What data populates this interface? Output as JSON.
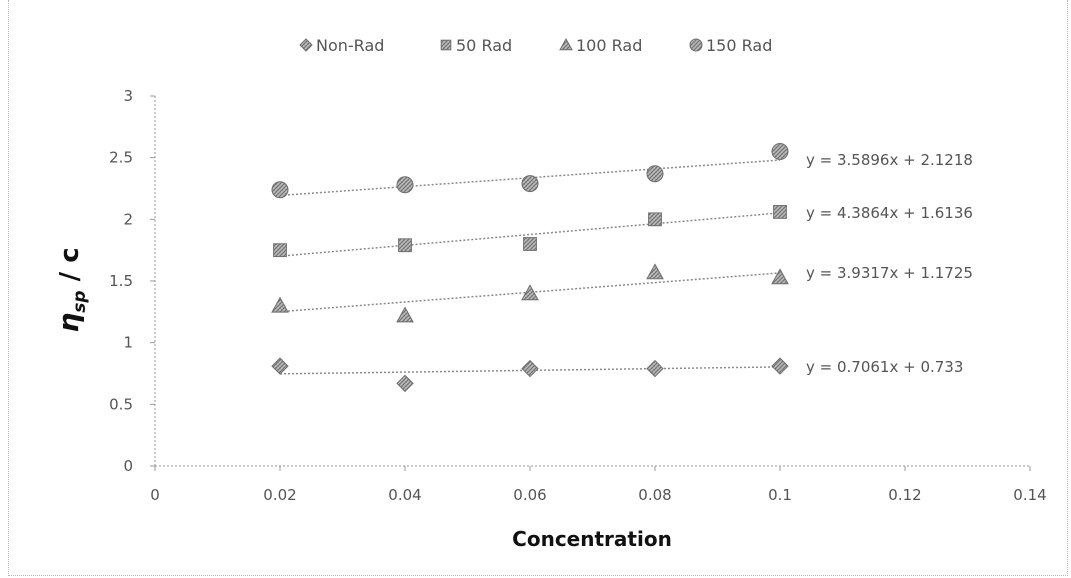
{
  "chart_data": {
    "type": "scatter",
    "title": "",
    "xlabel": "Concentration",
    "ylabel": {
      "symbol": "η",
      "subscript": "sp",
      "suffix": " / c"
    },
    "xlim": [
      0,
      0.14
    ],
    "ylim": [
      0,
      3
    ],
    "x_ticks": [
      "0",
      "0.02",
      "0.04",
      "0.06",
      "0.08",
      "0.1",
      "0.12",
      "0.14"
    ],
    "y_ticks": [
      "0",
      "0.5",
      "1",
      "1.5",
      "2",
      "2.5",
      "3"
    ],
    "grid": false,
    "legend_position": "top",
    "series": [
      {
        "name": "Non-Rad",
        "marker": "diamond",
        "x": [
          0.02,
          0.04,
          0.06,
          0.08,
          0.1
        ],
        "y": [
          0.81,
          0.67,
          0.79,
          0.79,
          0.81
        ],
        "trendline": {
          "slope": 0.7061,
          "intercept": 0.733,
          "equation": "y = 0.7061x + 0.733"
        }
      },
      {
        "name": "50 Rad",
        "marker": "square",
        "x": [
          0.02,
          0.04,
          0.06,
          0.08,
          0.1
        ],
        "y": [
          1.75,
          1.79,
          1.8,
          2.0,
          2.06
        ],
        "trendline": {
          "slope": 4.3864,
          "intercept": 1.6136,
          "equation": "y = 4.3864x + 1.6136"
        }
      },
      {
        "name": "100 Rad",
        "marker": "triangle",
        "x": [
          0.02,
          0.04,
          0.06,
          0.08,
          0.1
        ],
        "y": [
          1.3,
          1.22,
          1.4,
          1.57,
          1.53
        ],
        "trendline": {
          "slope": 3.9317,
          "intercept": 1.1725,
          "equation": "y = 3.9317x + 1.1725"
        }
      },
      {
        "name": "150 Rad",
        "marker": "circle",
        "x": [
          0.02,
          0.04,
          0.06,
          0.08,
          0.1
        ],
        "y": [
          2.24,
          2.28,
          2.29,
          2.37,
          2.55
        ],
        "trendline": {
          "slope": 3.5896,
          "intercept": 2.1218,
          "equation": "y = 3.5896x + 2.1218"
        }
      }
    ],
    "colors": {
      "marker_fill": "#a9a9a9",
      "marker_stroke": "#6e6e6e",
      "trendline": "#8a8a8a",
      "axis": "#9a9a9a",
      "text": "#555555"
    }
  }
}
